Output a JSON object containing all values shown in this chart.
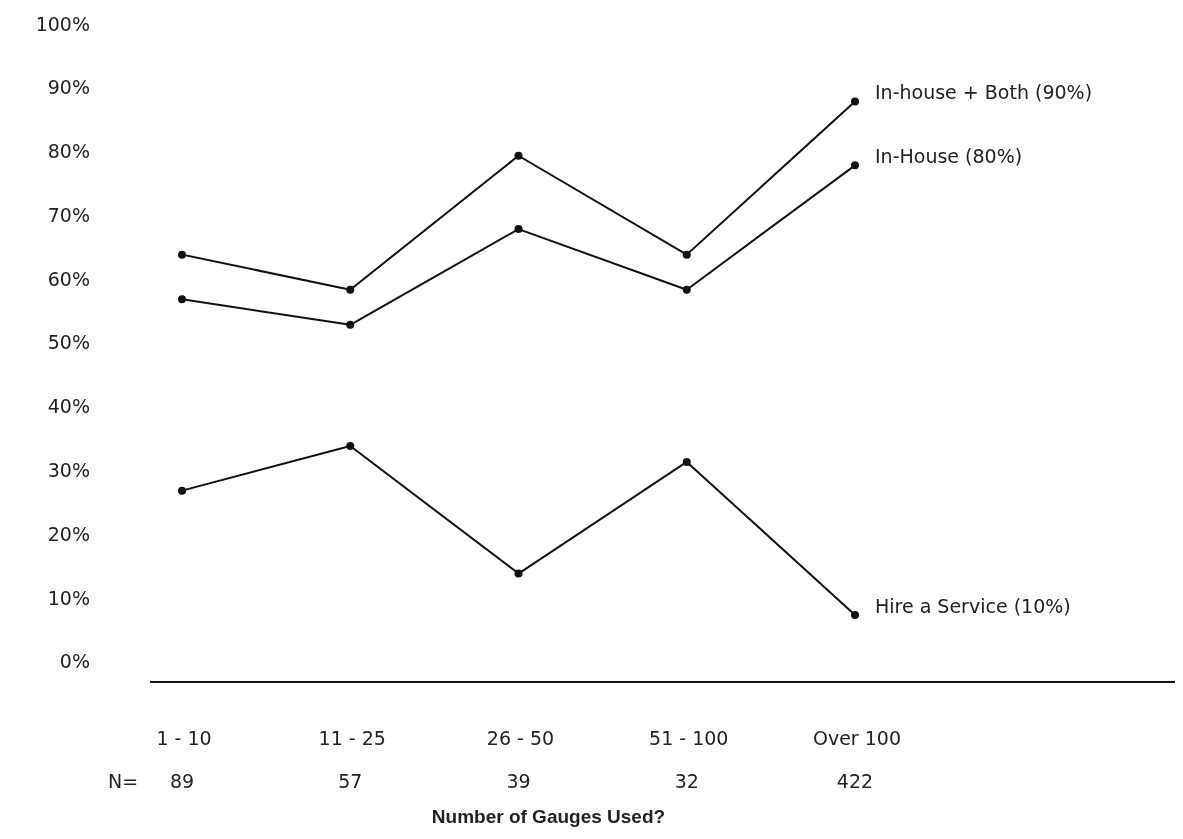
{
  "chart_data": {
    "type": "line",
    "xlabel": "Number of Gauges Used?",
    "categories": [
      "1 - 10",
      "11 - 25",
      "26 - 50",
      "51 - 100",
      "Over 100"
    ],
    "series": [
      {
        "name": "In-house + Both (90%)",
        "color": "#111111",
        "values": [
          64,
          58.5,
          79.5,
          64,
          88
        ]
      },
      {
        "name": "In-House (80%)",
        "color": "#111111",
        "values": [
          57,
          53,
          68,
          58.5,
          78
        ]
      },
      {
        "name": "Hire a Service (10%)",
        "color": "#111111",
        "values": [
          27,
          34,
          14,
          31.5,
          7.5
        ]
      }
    ],
    "ylim": [
      -3,
      100
    ],
    "yticks": [
      {
        "value": 0,
        "label": "0%"
      },
      {
        "value": 10,
        "label": "10%"
      },
      {
        "value": 20,
        "label": "20%"
      },
      {
        "value": 30,
        "label": "30%"
      },
      {
        "value": 40,
        "label": "40%"
      },
      {
        "value": 50,
        "label": "50%"
      },
      {
        "value": 60,
        "label": "60%"
      },
      {
        "value": 70,
        "label": "70%"
      },
      {
        "value": 80,
        "label": "80%"
      },
      {
        "value": 90,
        "label": "90%"
      },
      {
        "value": 100,
        "label": "100%"
      }
    ],
    "annotations": [
      "N=",
      "89",
      "57",
      "39",
      "32",
      "422"
    ],
    "marker": "circle",
    "line_style": "solid",
    "grid": false
  }
}
